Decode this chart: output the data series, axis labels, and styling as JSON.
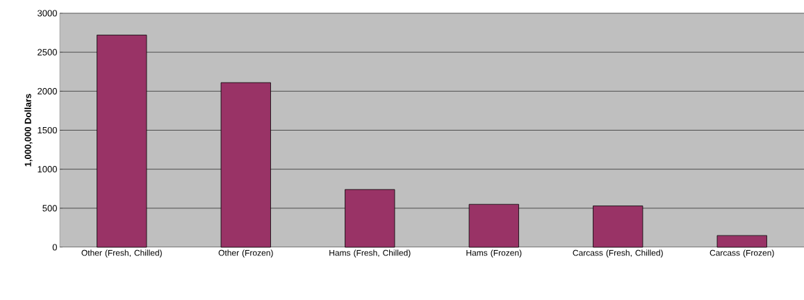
{
  "chart_data": {
    "type": "bar",
    "ylabel": "1,000,000 Dollars",
    "categories": [
      "Other (Fresh, Chilled)",
      "Other (Frozen)",
      "Hams (Fresh, Chilled)",
      "Hams (Frozen)",
      "Carcass (Fresh, Chilled)",
      "Carcass (Frozen)"
    ],
    "values": [
      2720,
      2110,
      740,
      550,
      530,
      150
    ],
    "color": "#993366",
    "ylim": [
      0,
      3000
    ],
    "yticks": [
      0,
      500,
      1000,
      1500,
      2000,
      2500,
      3000
    ],
    "grid": "y"
  }
}
